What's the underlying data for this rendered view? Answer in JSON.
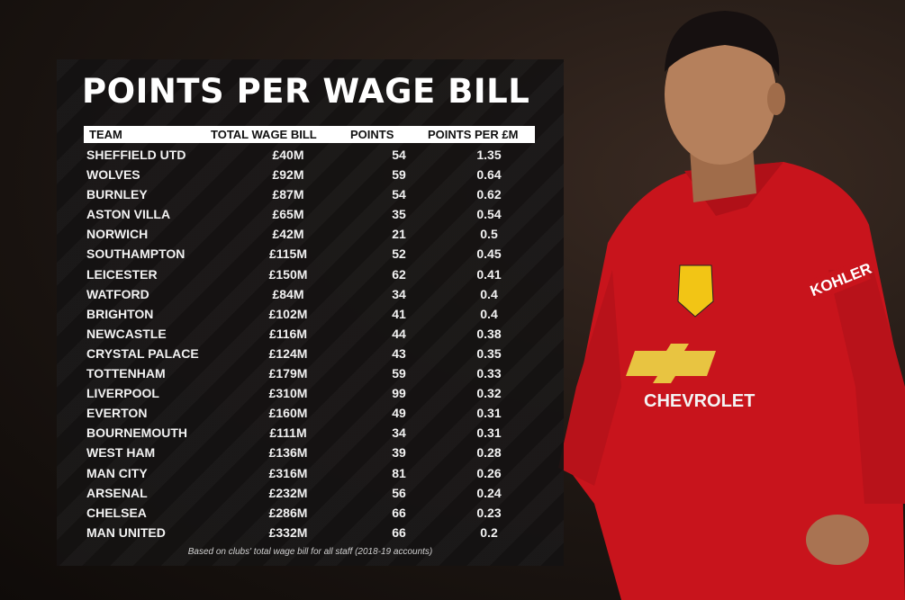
{
  "title": "POINTS PER WAGE BILL",
  "columns": {
    "team": "TEAM",
    "wage": "TOTAL WAGE BILL",
    "points": "POINTS",
    "ppm": "POINTS PER £M"
  },
  "rows": [
    {
      "team": "SHEFFIELD UTD",
      "wage": "£40M",
      "points": "54",
      "ppm": "1.35"
    },
    {
      "team": "WOLVES",
      "wage": "£92M",
      "points": "59",
      "ppm": "0.64"
    },
    {
      "team": "BURNLEY",
      "wage": "£87M",
      "points": "54",
      "ppm": "0.62"
    },
    {
      "team": "ASTON VILLA",
      "wage": "£65M",
      "points": "35",
      "ppm": "0.54"
    },
    {
      "team": "NORWICH",
      "wage": "£42M",
      "points": "21",
      "ppm": "0.5"
    },
    {
      "team": "SOUTHAMPTON",
      "wage": "£115M",
      "points": "52",
      "ppm": "0.45"
    },
    {
      "team": "LEICESTER",
      "wage": "£150M",
      "points": "62",
      "ppm": "0.41"
    },
    {
      "team": "WATFORD",
      "wage": "£84M",
      "points": "34",
      "ppm": "0.4"
    },
    {
      "team": "BRIGHTON",
      "wage": "£102M",
      "points": "41",
      "ppm": "0.4"
    },
    {
      "team": "NEWCASTLE",
      "wage": "£116M",
      "points": "44",
      "ppm": "0.38"
    },
    {
      "team": "CRYSTAL PALACE",
      "wage": "£124M",
      "points": "43",
      "ppm": "0.35"
    },
    {
      "team": "TOTTENHAM",
      "wage": "£179M",
      "points": "59",
      "ppm": "0.33"
    },
    {
      "team": "LIVERPOOL",
      "wage": "£310M",
      "points": "99",
      "ppm": "0.32"
    },
    {
      "team": "EVERTON",
      "wage": "£160M",
      "points": "49",
      "ppm": "0.31"
    },
    {
      "team": "BOURNEMOUTH",
      "wage": "£111M",
      "points": "34",
      "ppm": "0.31"
    },
    {
      "team": "WEST HAM",
      "wage": "£136M",
      "points": "39",
      "ppm": "0.28"
    },
    {
      "team": "MAN CITY",
      "wage": "£316M",
      "points": "81",
      "ppm": "0.26"
    },
    {
      "team": "ARSENAL",
      "wage": "£232M",
      "points": "56",
      "ppm": "0.24"
    },
    {
      "team": "CHELSEA",
      "wage": "£286M",
      "points": "66",
      "ppm": "0.23"
    },
    {
      "team": "MAN UNITED",
      "wage": "£332M",
      "points": "66",
      "ppm": "0.2"
    }
  ],
  "footnote": "Based on clubs' total wage bill for all staff (2018-19 accounts)",
  "player": {
    "shirt_sponsor": "CHEVROLET",
    "sleeve_sponsor": "KOHLER",
    "colors": {
      "shirt": "#c8141c",
      "skin": "#b5805c",
      "hair": "#161010"
    }
  }
}
